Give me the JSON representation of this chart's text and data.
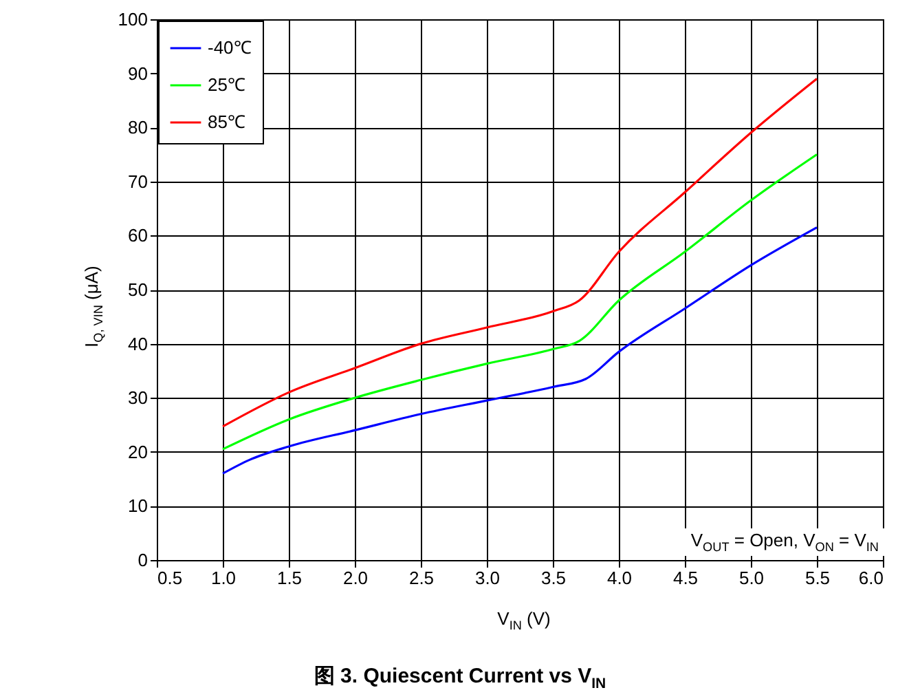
{
  "chart_data": {
    "type": "line",
    "title": "图 3. Quiescent Current vs V$_{IN}$",
    "xlabel": "V$_{IN}$ (V)",
    "ylabel": "I$_{Q, VIN}$ (μA)",
    "annotations": [
      "V$_{OUT}$ = Open, V$_{ON}$ = V$_{IN}$"
    ],
    "series": [
      {
        "name": "-40℃",
        "color": "#0000ff",
        "x": [
          1.0,
          1.2,
          1.5,
          2.0,
          2.5,
          3.0,
          3.5,
          3.75,
          4.0,
          4.5,
          5.0,
          5.5
        ],
        "values": [
          16,
          18.5,
          21,
          24,
          27,
          29.5,
          32,
          33.5,
          38.5,
          46.5,
          54.5,
          61.5
        ]
      },
      {
        "name": "25℃",
        "color": "#00ff00",
        "x": [
          1.0,
          1.5,
          2.0,
          2.5,
          3.0,
          3.5,
          3.7,
          4.0,
          4.5,
          5.0,
          5.5
        ],
        "values": [
          20.5,
          26,
          30,
          33.3,
          36.3,
          39,
          40.5,
          48,
          57,
          66.5,
          75
        ]
      },
      {
        "name": "85℃",
        "color": "#ff0000",
        "x": [
          1.0,
          1.5,
          2.0,
          2.5,
          3.0,
          3.5,
          3.7,
          4.0,
          4.5,
          5.0,
          5.5
        ],
        "values": [
          24.7,
          31,
          35.5,
          40,
          43,
          46,
          48,
          57,
          68,
          79,
          89
        ]
      }
    ],
    "xlim": [
      0.5,
      6.0
    ],
    "xticks": [
      0.5,
      {
        "value": 1,
        "label": "1.0"
      },
      1.5,
      {
        "value": 2,
        "label": "2.0"
      },
      2.5,
      {
        "value": 3,
        "label": "3.0"
      },
      3.5,
      {
        "value": 4,
        "label": "4.0"
      },
      4.5,
      {
        "value": 5,
        "label": "5.0"
      },
      5.5,
      {
        "value": 6,
        "label": "6.0"
      }
    ],
    "ylim": [
      0,
      100
    ],
    "yticks": [
      0,
      10,
      20,
      30,
      40,
      50,
      60,
      70,
      80,
      90,
      100
    ],
    "grid": true,
    "legend": "top left",
    "line_style": "solid"
  }
}
